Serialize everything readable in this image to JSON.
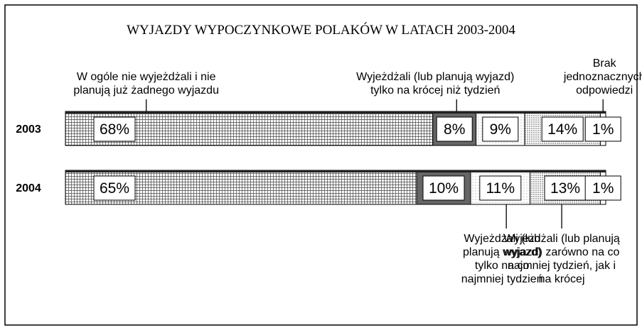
{
  "chart_data": {
    "type": "stacked-bar-horizontal",
    "title": "WYJAZDY WYPOCZYNKOWE POLAKÓW W LATACH 2003-2004",
    "categories": [
      "2003",
      "2004"
    ],
    "series": [
      {
        "name": "W ogóle nie wyjeżdżali i nie planują już żadnego wyjazdu",
        "color": "#555555",
        "values": [
          68,
          65
        ],
        "value_labels": [
          "68%",
          "65%"
        ]
      },
      {
        "name": "Wyjeżdżali (lub planują wyjazd) tylko na krócej niż tydzień",
        "color": "#666666",
        "values": [
          8,
          10
        ],
        "value_labels": [
          "8%",
          "10%"
        ]
      },
      {
        "name": "Wyjeżdżali (lub planują wyjazd) tylko na co najmniej tydzień",
        "color": "#dddddd",
        "values": [
          9,
          11
        ],
        "value_labels": [
          "9%",
          "11%"
        ]
      },
      {
        "name": "Wyjeżdżali (lub planują wyjazd) zarówno na co najmniej tydzień, jak i na krócej",
        "color": "#aaaaaa",
        "values": [
          14,
          13
        ],
        "value_labels": [
          "14%",
          "13%"
        ]
      },
      {
        "name": "Brak jednoznacznych odpowiedzi",
        "color": "#ffffff",
        "values": [
          1,
          1
        ],
        "value_labels": [
          "1%",
          "1%"
        ]
      }
    ],
    "xlim": [
      0,
      100
    ]
  }
}
